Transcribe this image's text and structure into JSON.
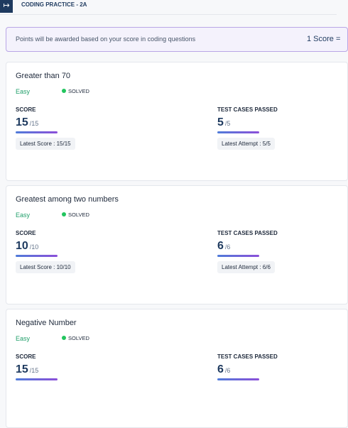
{
  "header": {
    "title": "CODING PRACTICE - 2A"
  },
  "banner": {
    "text": "Points will be awarded based on your score in coding questions",
    "right": "1 Score ="
  },
  "problems": [
    {
      "title": "Greater than 70",
      "difficulty": "Easy",
      "status": "SOLVED",
      "score_label": "SCORE",
      "score": 15,
      "score_total": "/15",
      "latest_score": "Latest Score : 15/15",
      "tests_label": "TEST CASES PASSED",
      "passed": 5,
      "tests_total": "/5",
      "latest_attempt": "Latest Attempt : 5/5"
    },
    {
      "title": "Greatest among two numbers",
      "difficulty": "Easy",
      "status": "SOLVED",
      "score_label": "SCORE",
      "score": 10,
      "score_total": "/10",
      "latest_score": "Latest Score : 10/10",
      "tests_label": "TEST CASES PASSED",
      "passed": 6,
      "tests_total": "/6",
      "latest_attempt": "Latest Attempt : 6/6"
    },
    {
      "title": "Negative Number",
      "difficulty": "Easy",
      "status": "SOLVED",
      "score_label": "SCORE",
      "score": 15,
      "score_total": "/15",
      "tests_label": "TEST CASES PASSED",
      "passed": 6,
      "tests_total": "/6"
    }
  ]
}
